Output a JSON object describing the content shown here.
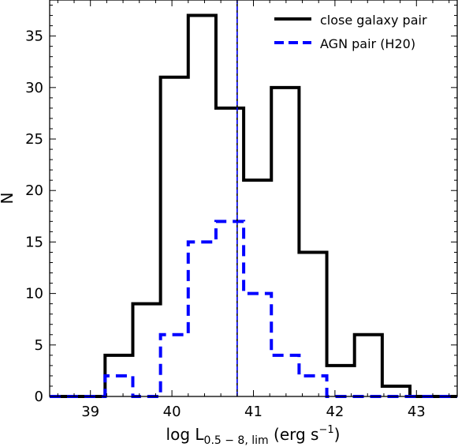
{
  "chart_data": {
    "type": "histogram",
    "xlabel": "log L",
    "xlabel_subscript": "0.5 − 8, lim",
    "xlabel_suffix": " (erg s",
    "xlabel_superscript": "−1",
    "xlabel_close": ")",
    "ylabel": "N",
    "xlim": [
      38.5,
      43.5
    ],
    "ylim": [
      0,
      38.5
    ],
    "xticks": [
      39,
      40,
      41,
      42,
      43
    ],
    "yticks": [
      0,
      5,
      10,
      15,
      20,
      25,
      30,
      35
    ],
    "vline_x": 40.8,
    "bin_edges": [
      38.5,
      38.84,
      39.18,
      39.52,
      39.86,
      40.2,
      40.54,
      40.88,
      41.22,
      41.56,
      41.9,
      42.24,
      42.58,
      42.92,
      43.26,
      43.5
    ],
    "legend_position": "top-right",
    "series": [
      {
        "name": "close galaxy pair",
        "style": "solid",
        "color": "#000000",
        "counts": [
          0,
          0,
          4,
          9,
          31,
          37,
          28,
          21,
          30,
          14,
          3,
          6,
          1,
          0,
          0
        ]
      },
      {
        "name": "AGN pair (H20)",
        "style": "dashed",
        "color": "#0000ff",
        "counts": [
          0,
          0,
          2,
          0,
          6,
          15,
          17,
          10,
          4,
          2,
          0,
          0,
          0,
          0,
          0
        ]
      }
    ]
  }
}
